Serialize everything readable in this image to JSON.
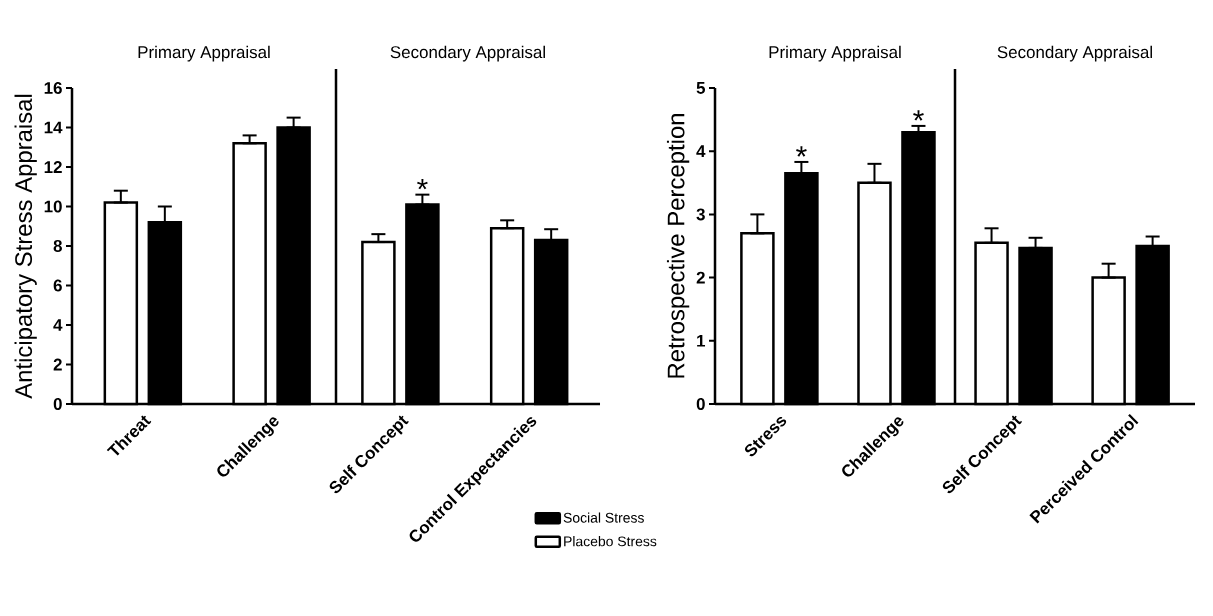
{
  "chart_data": [
    {
      "type": "bar",
      "ylabel": "Anticipatory Stress Appraisal",
      "categories": [
        "Threat",
        "Challenge",
        "Self Concept",
        "Control Expectancies"
      ],
      "series": [
        {
          "name": "Placebo Stress",
          "color": "#ffffff",
          "values": [
            10.2,
            13.2,
            8.2,
            8.9
          ],
          "errors": [
            [
              10.2,
              10.8
            ],
            [
              13.2,
              13.6
            ],
            [
              8.2,
              8.6
            ],
            [
              8.9,
              9.3
            ]
          ]
        },
        {
          "name": "Social Stress",
          "color": "#000000",
          "values": [
            9.2,
            14.0,
            10.1,
            8.3
          ],
          "errors": [
            [
              9.2,
              10.0
            ],
            [
              14.0,
              14.5
            ],
            [
              10.1,
              10.6
            ],
            [
              8.3,
              8.85
            ]
          ]
        }
      ],
      "ylim": [
        0,
        16
      ],
      "yticks": [
        0,
        2,
        4,
        6,
        8,
        10,
        12,
        14,
        16
      ],
      "annotations": [
        "Primary Appraisal",
        "Secondary Appraisal",
        "*"
      ],
      "legend": "bottom right"
    },
    {
      "type": "bar",
      "ylabel": "Retrospective Perception",
      "categories": [
        "Stress",
        "Challenge",
        "Self Concept",
        "Perceived Control"
      ],
      "series": [
        {
          "color": "#ffffff",
          "values": [
            2.7,
            3.5,
            2.55,
            2.0
          ],
          "errors": [
            [
              2.7,
              3.0
            ],
            [
              3.5,
              3.8
            ],
            [
              2.55,
              2.78
            ],
            [
              2.0,
              2.22
            ]
          ]
        },
        {
          "color": "#000000",
          "values": [
            3.65,
            4.3,
            2.47,
            2.5
          ],
          "errors": [
            [
              3.65,
              3.83
            ],
            [
              4.3,
              4.4
            ],
            [
              2.47,
              2.63
            ],
            [
              2.5,
              2.65
            ]
          ]
        }
      ],
      "ylim": [
        0,
        5
      ],
      "yticks": [
        0,
        1,
        2,
        3,
        4,
        5
      ],
      "annotations": [
        "Primary Appraisal",
        "Secondary Appraisal",
        "*",
        "*"
      ],
      "legend": false
    }
  ]
}
